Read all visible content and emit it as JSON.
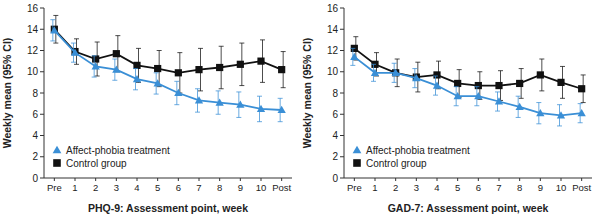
{
  "chart_data": [
    {
      "type": "line",
      "x_label": "PHQ-9: Assessment point, week",
      "y_label": "Weekly mean (95% CI)",
      "categories": [
        "Pre",
        "1",
        "2",
        "3",
        "4",
        "5",
        "6",
        "7",
        "8",
        "9",
        "10",
        "Post"
      ],
      "ylim": [
        0,
        16
      ],
      "yticks": [
        0,
        2,
        4,
        6,
        8,
        10,
        12,
        14,
        16
      ],
      "legend": "lower left",
      "series": [
        {
          "name": "Affect-phobia treatment",
          "color": "#3a8fd6",
          "marker": "triangle",
          "values": [
            13.9,
            11.8,
            10.5,
            10.2,
            9.3,
            8.9,
            8.0,
            7.3,
            7.1,
            6.9,
            6.5,
            6.4
          ],
          "errors": [
            1.0,
            0.9,
            1.0,
            1.0,
            1.0,
            1.0,
            1.1,
            1.1,
            1.1,
            1.2,
            1.2,
            1.1
          ]
        },
        {
          "name": "Control group",
          "color": "#111111",
          "marker": "square",
          "values": [
            14.0,
            11.9,
            11.2,
            11.7,
            10.6,
            10.3,
            9.9,
            10.2,
            10.4,
            10.7,
            11.0,
            10.2
          ],
          "errors": [
            1.3,
            1.2,
            1.6,
            1.7,
            1.6,
            1.7,
            1.9,
            2.0,
            2.0,
            2.0,
            2.0,
            1.7
          ]
        }
      ]
    },
    {
      "type": "line",
      "x_label": "GAD-7: Assessment point, week",
      "y_label": "Weekly mean (95% CI)",
      "categories": [
        "Pre",
        "1",
        "2",
        "3",
        "4",
        "5",
        "6",
        "7",
        "8",
        "9",
        "10",
        "Post"
      ],
      "ylim": [
        0,
        16
      ],
      "yticks": [
        0,
        2,
        4,
        6,
        8,
        10,
        12,
        14,
        16
      ],
      "legend": "lower left",
      "series": [
        {
          "name": "Affect-phobia treatment",
          "color": "#3a8fd6",
          "marker": "triangle",
          "values": [
            11.4,
            9.9,
            9.9,
            9.4,
            8.7,
            7.7,
            7.7,
            7.2,
            6.7,
            6.1,
            5.9,
            6.1
          ],
          "errors": [
            0.8,
            0.8,
            0.9,
            0.9,
            0.9,
            0.9,
            0.9,
            0.9,
            1.0,
            1.0,
            1.0,
            0.9
          ]
        },
        {
          "name": "Control group",
          "color": "#111111",
          "marker": "square",
          "values": [
            12.2,
            10.7,
            9.9,
            9.5,
            9.7,
            8.9,
            8.7,
            8.7,
            8.9,
            9.7,
            9.0,
            8.4
          ],
          "errors": [
            1.1,
            1.1,
            1.3,
            1.4,
            1.3,
            1.3,
            1.3,
            1.4,
            1.4,
            1.5,
            1.5,
            1.3
          ]
        }
      ]
    }
  ]
}
